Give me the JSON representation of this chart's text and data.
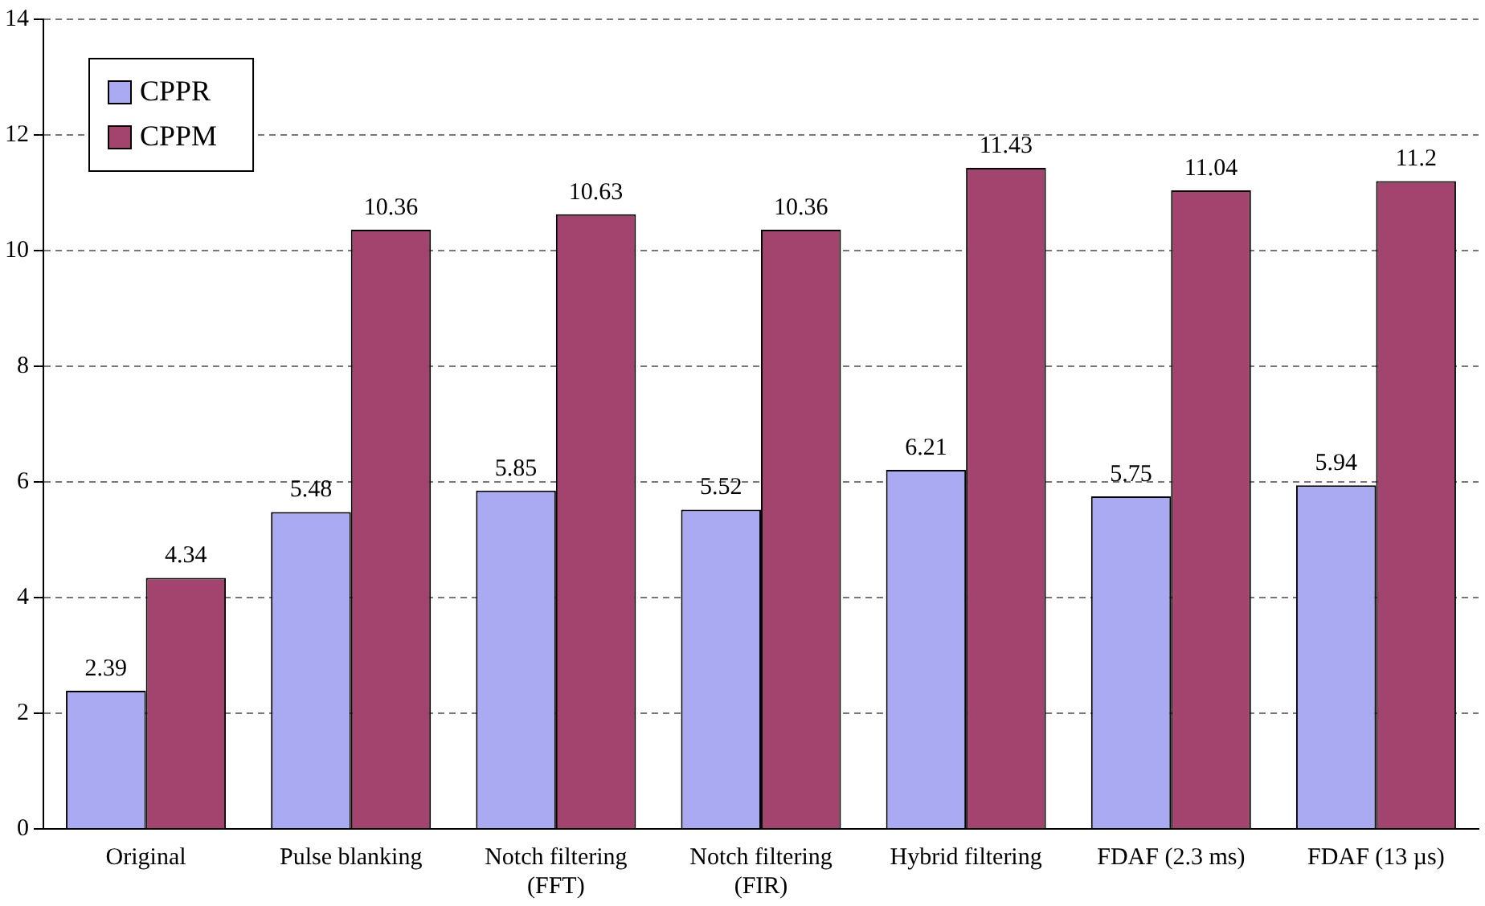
{
  "chart_data": {
    "type": "bar",
    "categories": [
      "Original",
      "Pulse blanking",
      "Notch filtering\n(FFT)",
      "Notch filtering\n(FIR)",
      "Hybrid filtering",
      "FDAF (2.3 ms)",
      "FDAF (13 µs)"
    ],
    "series": [
      {
        "name": "CPPR",
        "color": "#aaaaf2",
        "values": [
          2.39,
          5.48,
          5.85,
          5.52,
          6.21,
          5.75,
          5.94
        ]
      },
      {
        "name": "CPPM",
        "color": "#a3446f",
        "values": [
          4.34,
          10.36,
          10.63,
          10.36,
          11.43,
          11.04,
          11.2
        ]
      }
    ],
    "ylim": [
      0,
      14
    ],
    "yticks": [
      0,
      2,
      4,
      6,
      8,
      10,
      12,
      14
    ],
    "grid": "y",
    "legend": "top left",
    "data_labels": true
  }
}
